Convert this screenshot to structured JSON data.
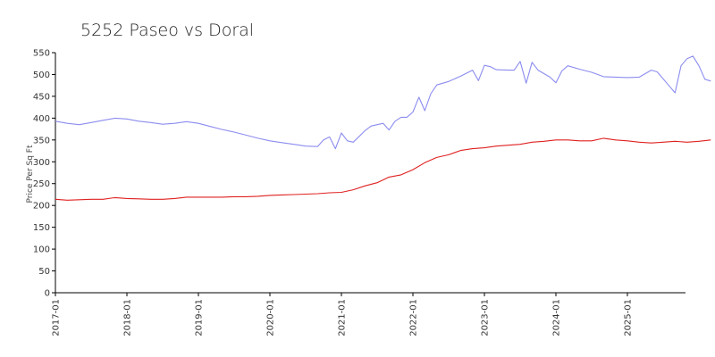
{
  "chart_data": {
    "type": "line",
    "title": "5252 Paseo vs Doral",
    "xlabel": "",
    "ylabel": "Price Per Sq Ft",
    "ylim": [
      0,
      550
    ],
    "yticks": [
      0,
      50,
      100,
      150,
      200,
      250,
      300,
      350,
      400,
      450,
      500,
      550
    ],
    "xlim": [
      "2017-01",
      "2025-11"
    ],
    "xticks": [
      "2017-01",
      "2018-01",
      "2019-01",
      "2020-01",
      "2021-01",
      "2022-01",
      "2023-01",
      "2024-01",
      "2025-01"
    ],
    "grid": false,
    "legend": "none",
    "series": [
      {
        "color": "#8c8cf0",
        "points": [
          [
            "2017-01",
            393
          ],
          [
            "2017-03",
            388
          ],
          [
            "2017-05",
            385
          ],
          [
            "2017-07",
            390
          ],
          [
            "2017-09",
            395
          ],
          [
            "2017-11",
            400
          ],
          [
            "2018-01",
            398
          ],
          [
            "2018-03",
            393
          ],
          [
            "2018-05",
            390
          ],
          [
            "2018-07",
            386
          ],
          [
            "2018-09",
            388
          ],
          [
            "2018-11",
            392
          ],
          [
            "2019-01",
            388
          ],
          [
            "2019-03",
            381
          ],
          [
            "2019-05",
            374
          ],
          [
            "2019-07",
            368
          ],
          [
            "2019-09",
            361
          ],
          [
            "2019-11",
            354
          ],
          [
            "2020-01",
            348
          ],
          [
            "2020-03",
            344
          ],
          [
            "2020-05",
            340
          ],
          [
            "2020-07",
            336
          ],
          [
            "2020-09",
            335
          ],
          [
            "2020-10",
            350
          ],
          [
            "2020-11",
            357
          ],
          [
            "2020-12",
            330
          ],
          [
            "2021-01",
            366
          ],
          [
            "2021-02",
            348
          ],
          [
            "2021-03",
            345
          ],
          [
            "2021-05",
            372
          ],
          [
            "2021-06",
            382
          ],
          [
            "2021-08",
            388
          ],
          [
            "2021-09",
            373
          ],
          [
            "2021-10",
            393
          ],
          [
            "2021-11",
            402
          ],
          [
            "2021-12",
            402
          ],
          [
            "2022-01",
            414
          ],
          [
            "2022-02",
            448
          ],
          [
            "2022-03",
            417
          ],
          [
            "2022-04",
            456
          ],
          [
            "2022-05",
            476
          ],
          [
            "2022-07",
            484
          ],
          [
            "2022-09",
            496
          ],
          [
            "2022-11",
            510
          ],
          [
            "2022-12",
            486
          ],
          [
            "2023-01",
            521
          ],
          [
            "2023-02",
            518
          ],
          [
            "2023-03",
            511
          ],
          [
            "2023-05",
            510
          ],
          [
            "2023-06",
            510
          ],
          [
            "2023-07",
            530
          ],
          [
            "2023-08",
            480
          ],
          [
            "2023-09",
            528
          ],
          [
            "2023-10",
            510
          ],
          [
            "2023-12",
            494
          ],
          [
            "2024-01",
            481
          ],
          [
            "2024-02",
            508
          ],
          [
            "2024-03",
            520
          ],
          [
            "2024-05",
            512
          ],
          [
            "2024-07",
            505
          ],
          [
            "2024-09",
            495
          ],
          [
            "2024-11",
            494
          ],
          [
            "2025-01",
            493
          ],
          [
            "2025-03",
            494
          ],
          [
            "2025-05",
            510
          ],
          [
            "2025-06",
            506
          ],
          [
            "2025-08",
            474
          ],
          [
            "2025-09",
            458
          ],
          [
            "2025-10",
            520
          ],
          [
            "2025-11",
            536
          ],
          [
            "2025-12",
            542
          ],
          [
            "2026-01",
            520
          ],
          [
            "2026-02",
            489
          ],
          [
            "2026-03",
            485
          ]
        ]
      },
      {
        "color": "#e02020",
        "points": [
          [
            "2017-01",
            214
          ],
          [
            "2017-03",
            212
          ],
          [
            "2017-05",
            213
          ],
          [
            "2017-07",
            214
          ],
          [
            "2017-09",
            214
          ],
          [
            "2017-11",
            218
          ],
          [
            "2018-01",
            216
          ],
          [
            "2018-03",
            215
          ],
          [
            "2018-05",
            214
          ],
          [
            "2018-07",
            214
          ],
          [
            "2018-09",
            216
          ],
          [
            "2018-11",
            219
          ],
          [
            "2019-01",
            219
          ],
          [
            "2019-03",
            219
          ],
          [
            "2019-05",
            219
          ],
          [
            "2019-07",
            220
          ],
          [
            "2019-09",
            220
          ],
          [
            "2019-11",
            221
          ],
          [
            "2020-01",
            223
          ],
          [
            "2020-03",
            224
          ],
          [
            "2020-05",
            225
          ],
          [
            "2020-07",
            226
          ],
          [
            "2020-09",
            227
          ],
          [
            "2020-11",
            229
          ],
          [
            "2021-01",
            230
          ],
          [
            "2021-03",
            236
          ],
          [
            "2021-05",
            245
          ],
          [
            "2021-07",
            252
          ],
          [
            "2021-09",
            265
          ],
          [
            "2021-11",
            270
          ],
          [
            "2022-01",
            282
          ],
          [
            "2022-03",
            298
          ],
          [
            "2022-05",
            310
          ],
          [
            "2022-07",
            316
          ],
          [
            "2022-09",
            326
          ],
          [
            "2022-11",
            330
          ],
          [
            "2023-01",
            332
          ],
          [
            "2023-03",
            336
          ],
          [
            "2023-05",
            338
          ],
          [
            "2023-07",
            340
          ],
          [
            "2023-09",
            345
          ],
          [
            "2023-11",
            347
          ],
          [
            "2024-01",
            350
          ],
          [
            "2024-03",
            350
          ],
          [
            "2024-05",
            348
          ],
          [
            "2024-07",
            348
          ],
          [
            "2024-09",
            354
          ],
          [
            "2024-11",
            350
          ],
          [
            "2025-01",
            348
          ],
          [
            "2025-03",
            345
          ],
          [
            "2025-05",
            343
          ],
          [
            "2025-07",
            345
          ],
          [
            "2025-09",
            347
          ],
          [
            "2025-11",
            345
          ],
          [
            "2026-01",
            347
          ],
          [
            "2026-03",
            350
          ]
        ]
      }
    ]
  }
}
